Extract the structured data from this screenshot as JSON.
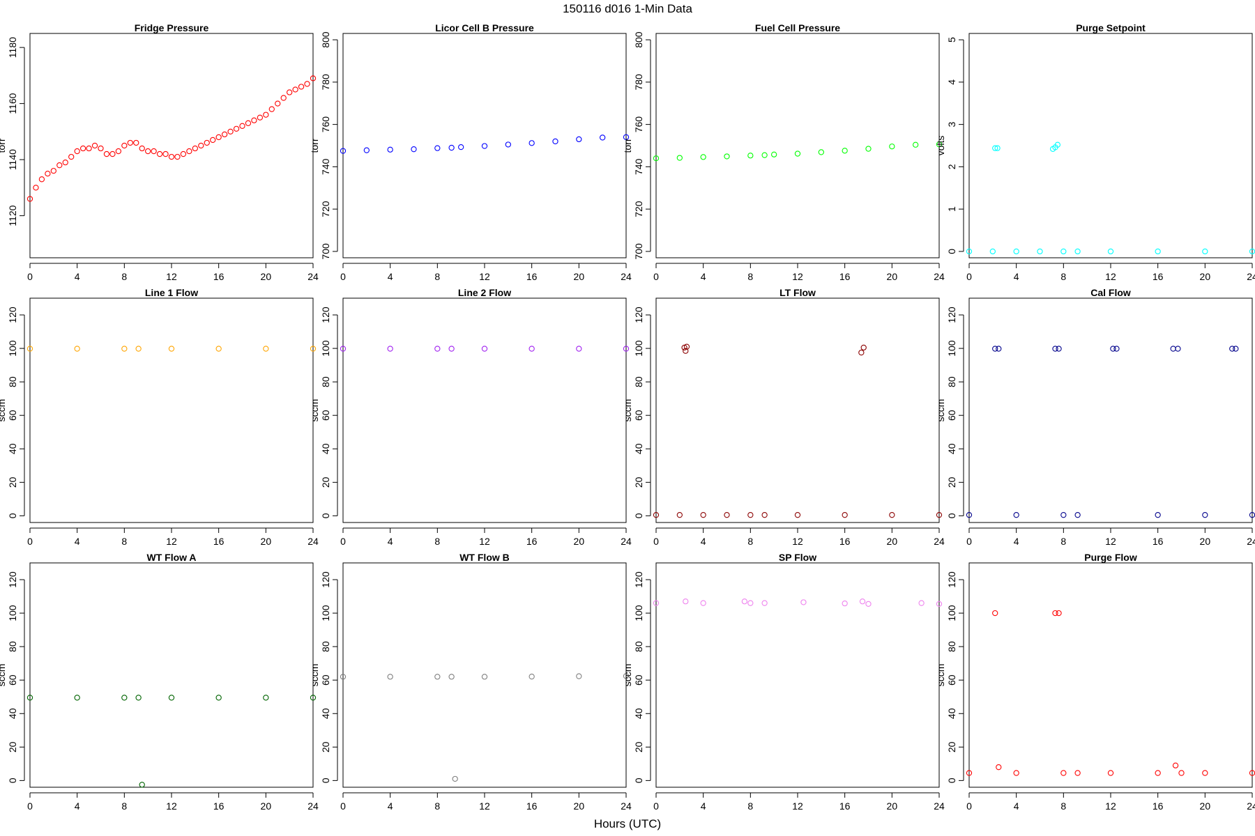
{
  "figure": {
    "title": "150116   d016   1-Min Data",
    "x_axis_title": "Hours (UTC)"
  },
  "chart_data": [
    {
      "type": "scatter",
      "title": "Fridge Pressure",
      "xlabel": "",
      "ylabel": "torr",
      "xlim": [
        0,
        24
      ],
      "ylim": [
        1105,
        1185
      ],
      "xticks": [
        0,
        4,
        8,
        12,
        16,
        20,
        24
      ],
      "yticks": [
        1120,
        1140,
        1160,
        1180
      ],
      "color": "#ff0000",
      "grid": false,
      "series": [
        {
          "points": [
            [
              0,
              1126
            ],
            [
              0.5,
              1130
            ],
            [
              1,
              1133
            ],
            [
              1.5,
              1135
            ],
            [
              2,
              1136
            ],
            [
              2.5,
              1138
            ],
            [
              3,
              1139
            ],
            [
              3.5,
              1141
            ],
            [
              4,
              1143
            ],
            [
              4.5,
              1144
            ],
            [
              5,
              1144
            ],
            [
              5.5,
              1145
            ],
            [
              6,
              1144
            ],
            [
              6.5,
              1142
            ],
            [
              7,
              1142
            ],
            [
              7.5,
              1143
            ],
            [
              8,
              1145
            ],
            [
              8.5,
              1146
            ],
            [
              9,
              1146
            ],
            [
              9.5,
              1144
            ],
            [
              10,
              1143
            ],
            [
              10.5,
              1143
            ],
            [
              11,
              1142
            ],
            [
              11.5,
              1142
            ],
            [
              12,
              1141
            ],
            [
              12.5,
              1141
            ],
            [
              13,
              1142
            ],
            [
              13.5,
              1143
            ],
            [
              14,
              1144
            ],
            [
              14.5,
              1145
            ],
            [
              15,
              1146
            ],
            [
              15.5,
              1147
            ],
            [
              16,
              1148
            ],
            [
              16.5,
              1149
            ],
            [
              17,
              1150
            ],
            [
              17.5,
              1151
            ],
            [
              18,
              1152
            ],
            [
              18.5,
              1153
            ],
            [
              19,
              1154
            ],
            [
              19.5,
              1155
            ],
            [
              20,
              1156
            ],
            [
              20.5,
              1158
            ],
            [
              21,
              1160
            ],
            [
              21.5,
              1162
            ],
            [
              22,
              1164
            ],
            [
              22.5,
              1165
            ],
            [
              23,
              1166
            ],
            [
              23.5,
              1167
            ],
            [
              24,
              1169
            ]
          ]
        }
      ]
    },
    {
      "type": "scatter",
      "title": "Licor Cell B Pressure",
      "xlabel": "",
      "ylabel": "torr",
      "xlim": [
        0,
        24
      ],
      "ylim": [
        697,
        803
      ],
      "xticks": [
        0,
        4,
        8,
        12,
        16,
        20,
        24
      ],
      "yticks": [
        700,
        720,
        740,
        760,
        780,
        800
      ],
      "color": "#0000ff",
      "grid": false,
      "series": [
        {
          "points": [
            [
              0,
              747.5
            ],
            [
              2,
              747.8
            ],
            [
              4,
              748.1
            ],
            [
              6,
              748.3
            ],
            [
              8,
              748.8
            ],
            [
              9.2,
              749.0
            ],
            [
              10,
              749.3
            ],
            [
              12,
              749.8
            ],
            [
              14,
              750.5
            ],
            [
              16,
              751.2
            ],
            [
              18,
              752.0
            ],
            [
              20,
              753.0
            ],
            [
              22,
              753.8
            ],
            [
              24,
              754.0
            ]
          ]
        }
      ]
    },
    {
      "type": "scatter",
      "title": "Fuel Cell Pressure",
      "xlabel": "",
      "ylabel": "torr",
      "xlim": [
        0,
        24
      ],
      "ylim": [
        697,
        803
      ],
      "xticks": [
        0,
        4,
        8,
        12,
        16,
        20,
        24
      ],
      "yticks": [
        700,
        720,
        740,
        760,
        780,
        800
      ],
      "color": "#00ff00",
      "grid": false,
      "series": [
        {
          "points": [
            [
              0,
              744.0
            ],
            [
              2,
              744.2
            ],
            [
              4,
              744.6
            ],
            [
              6,
              744.9
            ],
            [
              8,
              745.3
            ],
            [
              9.2,
              745.5
            ],
            [
              10,
              745.8
            ],
            [
              12,
              746.2
            ],
            [
              14,
              746.9
            ],
            [
              16,
              747.6
            ],
            [
              18,
              748.5
            ],
            [
              20,
              749.6
            ],
            [
              22,
              750.4
            ],
            [
              24,
              750.6
            ]
          ]
        }
      ]
    },
    {
      "type": "scatter",
      "title": "Purge Setpoint",
      "xlabel": "",
      "ylabel": "volts",
      "xlim": [
        0,
        24
      ],
      "ylim": [
        -0.15,
        5.15
      ],
      "xticks": [
        0,
        4,
        8,
        12,
        16,
        20,
        24
      ],
      "yticks": [
        0,
        1,
        2,
        3,
        4,
        5
      ],
      "color": "#00ffff",
      "grid": false,
      "series": [
        {
          "points": [
            [
              0,
              0
            ],
            [
              2,
              0
            ],
            [
              2.2,
              2.44
            ],
            [
              2.4,
              2.44
            ],
            [
              4,
              0
            ],
            [
              6,
              0
            ],
            [
              7.1,
              2.42
            ],
            [
              7.3,
              2.46
            ],
            [
              7.5,
              2.52
            ],
            [
              8,
              0
            ],
            [
              9.2,
              0
            ],
            [
              12,
              0
            ],
            [
              16,
              0
            ],
            [
              20,
              0
            ],
            [
              24,
              0
            ]
          ]
        }
      ]
    },
    {
      "type": "scatter",
      "title": "Line 1 Flow",
      "xlabel": "",
      "ylabel": "sccm",
      "xlim": [
        0,
        24
      ],
      "ylim": [
        -4,
        130
      ],
      "xticks": [
        0,
        4,
        8,
        12,
        16,
        20,
        24
      ],
      "yticks": [
        0,
        20,
        40,
        60,
        80,
        100,
        120
      ],
      "color": "#ffa500",
      "grid": false,
      "series": [
        {
          "points": [
            [
              0,
              99.8
            ],
            [
              4,
              99.8
            ],
            [
              8,
              99.8
            ],
            [
              9.2,
              99.8
            ],
            [
              12,
              99.8
            ],
            [
              16,
              99.8
            ],
            [
              20,
              99.8
            ],
            [
              24,
              99.8
            ]
          ]
        }
      ]
    },
    {
      "type": "scatter",
      "title": "Line 2 Flow",
      "xlabel": "",
      "ylabel": "sccm",
      "xlim": [
        0,
        24
      ],
      "ylim": [
        -4,
        130
      ],
      "xticks": [
        0,
        4,
        8,
        12,
        16,
        20,
        24
      ],
      "yticks": [
        0,
        20,
        40,
        60,
        80,
        100,
        120
      ],
      "color": "#a020f0",
      "grid": false,
      "series": [
        {
          "points": [
            [
              0,
              99.8
            ],
            [
              4,
              99.8
            ],
            [
              8,
              99.8
            ],
            [
              9.2,
              99.8
            ],
            [
              12,
              99.8
            ],
            [
              16,
              99.8
            ],
            [
              20,
              99.8
            ],
            [
              24,
              99.8
            ]
          ]
        }
      ]
    },
    {
      "type": "scatter",
      "title": "LT Flow",
      "xlabel": "",
      "ylabel": "sccm",
      "xlim": [
        0,
        24
      ],
      "ylim": [
        -4,
        130
      ],
      "xticks": [
        0,
        4,
        8,
        12,
        16,
        20,
        24
      ],
      "yticks": [
        0,
        20,
        40,
        60,
        80,
        100,
        120
      ],
      "color": "#8b0000",
      "grid": false,
      "series": [
        {
          "points": [
            [
              0,
              0.5
            ],
            [
              2,
              0.5
            ],
            [
              2.4,
              100.5
            ],
            [
              2.5,
              98.5
            ],
            [
              2.6,
              101
            ],
            [
              4,
              0.5
            ],
            [
              6,
              0.5
            ],
            [
              8,
              0.5
            ],
            [
              9.2,
              0.5
            ],
            [
              12,
              0.5
            ],
            [
              16,
              0.5
            ],
            [
              17.4,
              97.5
            ],
            [
              17.6,
              100.5
            ],
            [
              20,
              0.5
            ],
            [
              24,
              0.5
            ]
          ]
        }
      ]
    },
    {
      "type": "scatter",
      "title": "Cal Flow",
      "xlabel": "",
      "ylabel": "sccm",
      "xlim": [
        0,
        24
      ],
      "ylim": [
        -4,
        130
      ],
      "xticks": [
        0,
        4,
        8,
        12,
        16,
        20,
        24
      ],
      "yticks": [
        0,
        20,
        40,
        60,
        80,
        100,
        120
      ],
      "color": "#00008b",
      "grid": false,
      "series": [
        {
          "points": [
            [
              0,
              0.5
            ],
            [
              2.2,
              99.8
            ],
            [
              2.5,
              99.8
            ],
            [
              4,
              0.5
            ],
            [
              7.3,
              99.8
            ],
            [
              7.6,
              99.8
            ],
            [
              8,
              0.5
            ],
            [
              9.2,
              0.5
            ],
            [
              12.2,
              99.8
            ],
            [
              12.5,
              99.8
            ],
            [
              16,
              0.5
            ],
            [
              17.3,
              99.8
            ],
            [
              17.7,
              99.8
            ],
            [
              20,
              0.5
            ],
            [
              22.3,
              99.8
            ],
            [
              22.6,
              99.8
            ],
            [
              24,
              0.5
            ]
          ]
        }
      ]
    },
    {
      "type": "scatter",
      "title": "WT Flow A",
      "xlabel": "",
      "ylabel": "sccm",
      "xlim": [
        0,
        24
      ],
      "ylim": [
        -4,
        130
      ],
      "xticks": [
        0,
        4,
        8,
        12,
        16,
        20,
        24
      ],
      "yticks": [
        0,
        20,
        40,
        60,
        80,
        100,
        120
      ],
      "color": "#006400",
      "grid": false,
      "series": [
        {
          "points": [
            [
              0,
              49.5
            ],
            [
              4,
              49.5
            ],
            [
              8,
              49.5
            ],
            [
              9.5,
              -2.5
            ],
            [
              9.2,
              49.5
            ],
            [
              12,
              49.5
            ],
            [
              16,
              49.5
            ],
            [
              20,
              49.5
            ],
            [
              24,
              49.5
            ]
          ]
        }
      ]
    },
    {
      "type": "scatter",
      "title": "WT Flow B",
      "xlabel": "",
      "ylabel": "sccm",
      "xlim": [
        0,
        24
      ],
      "ylim": [
        -4,
        130
      ],
      "xticks": [
        0,
        4,
        8,
        12,
        16,
        20,
        24
      ],
      "yticks": [
        0,
        20,
        40,
        60,
        80,
        100,
        120
      ],
      "color": "#808080",
      "grid": false,
      "series": [
        {
          "points": [
            [
              0,
              62.0
            ],
            [
              4,
              62.0
            ],
            [
              8,
              62.0
            ],
            [
              9.5,
              1.0
            ],
            [
              9.2,
              62.0
            ],
            [
              12,
              62.0
            ],
            [
              16,
              62.1
            ],
            [
              20,
              62.3
            ],
            [
              24,
              62.4
            ]
          ]
        }
      ]
    },
    {
      "type": "scatter",
      "title": "SP Flow",
      "xlabel": "",
      "ylabel": "sccm",
      "xlim": [
        0,
        24
      ],
      "ylim": [
        -4,
        130
      ],
      "xticks": [
        0,
        4,
        8,
        12,
        16,
        20,
        24
      ],
      "yticks": [
        0,
        20,
        40,
        60,
        80,
        100,
        120
      ],
      "color": "#ee82ee",
      "grid": false,
      "series": [
        {
          "points": [
            [
              0,
              106.0
            ],
            [
              2.5,
              107.0
            ],
            [
              4,
              106.0
            ],
            [
              7.5,
              107.0
            ],
            [
              8,
              106.0
            ],
            [
              9.2,
              106.0
            ],
            [
              12.5,
              106.5
            ],
            [
              16,
              105.8
            ],
            [
              17.5,
              107.0
            ],
            [
              18,
              105.5
            ],
            [
              22.5,
              106.0
            ],
            [
              24,
              105.5
            ]
          ]
        }
      ]
    },
    {
      "type": "scatter",
      "title": "Purge Flow",
      "xlabel": "",
      "ylabel": "sccm",
      "xlim": [
        0,
        24
      ],
      "ylim": [
        -4,
        130
      ],
      "xticks": [
        0,
        4,
        8,
        12,
        16,
        20,
        24
      ],
      "yticks": [
        0,
        20,
        40,
        60,
        80,
        100,
        120
      ],
      "color": "#ff0000",
      "grid": false,
      "series": [
        {
          "points": [
            [
              0,
              4.5
            ],
            [
              2.2,
              100
            ],
            [
              2.5,
              8
            ],
            [
              4,
              4.5
            ],
            [
              7.3,
              100
            ],
            [
              7.6,
              100
            ],
            [
              8,
              4.5
            ],
            [
              9.2,
              4.5
            ],
            [
              12,
              4.5
            ],
            [
              16,
              4.5
            ],
            [
              17.5,
              9
            ],
            [
              18,
              4.5
            ],
            [
              20,
              4.5
            ],
            [
              24,
              4.5
            ]
          ]
        }
      ]
    }
  ]
}
